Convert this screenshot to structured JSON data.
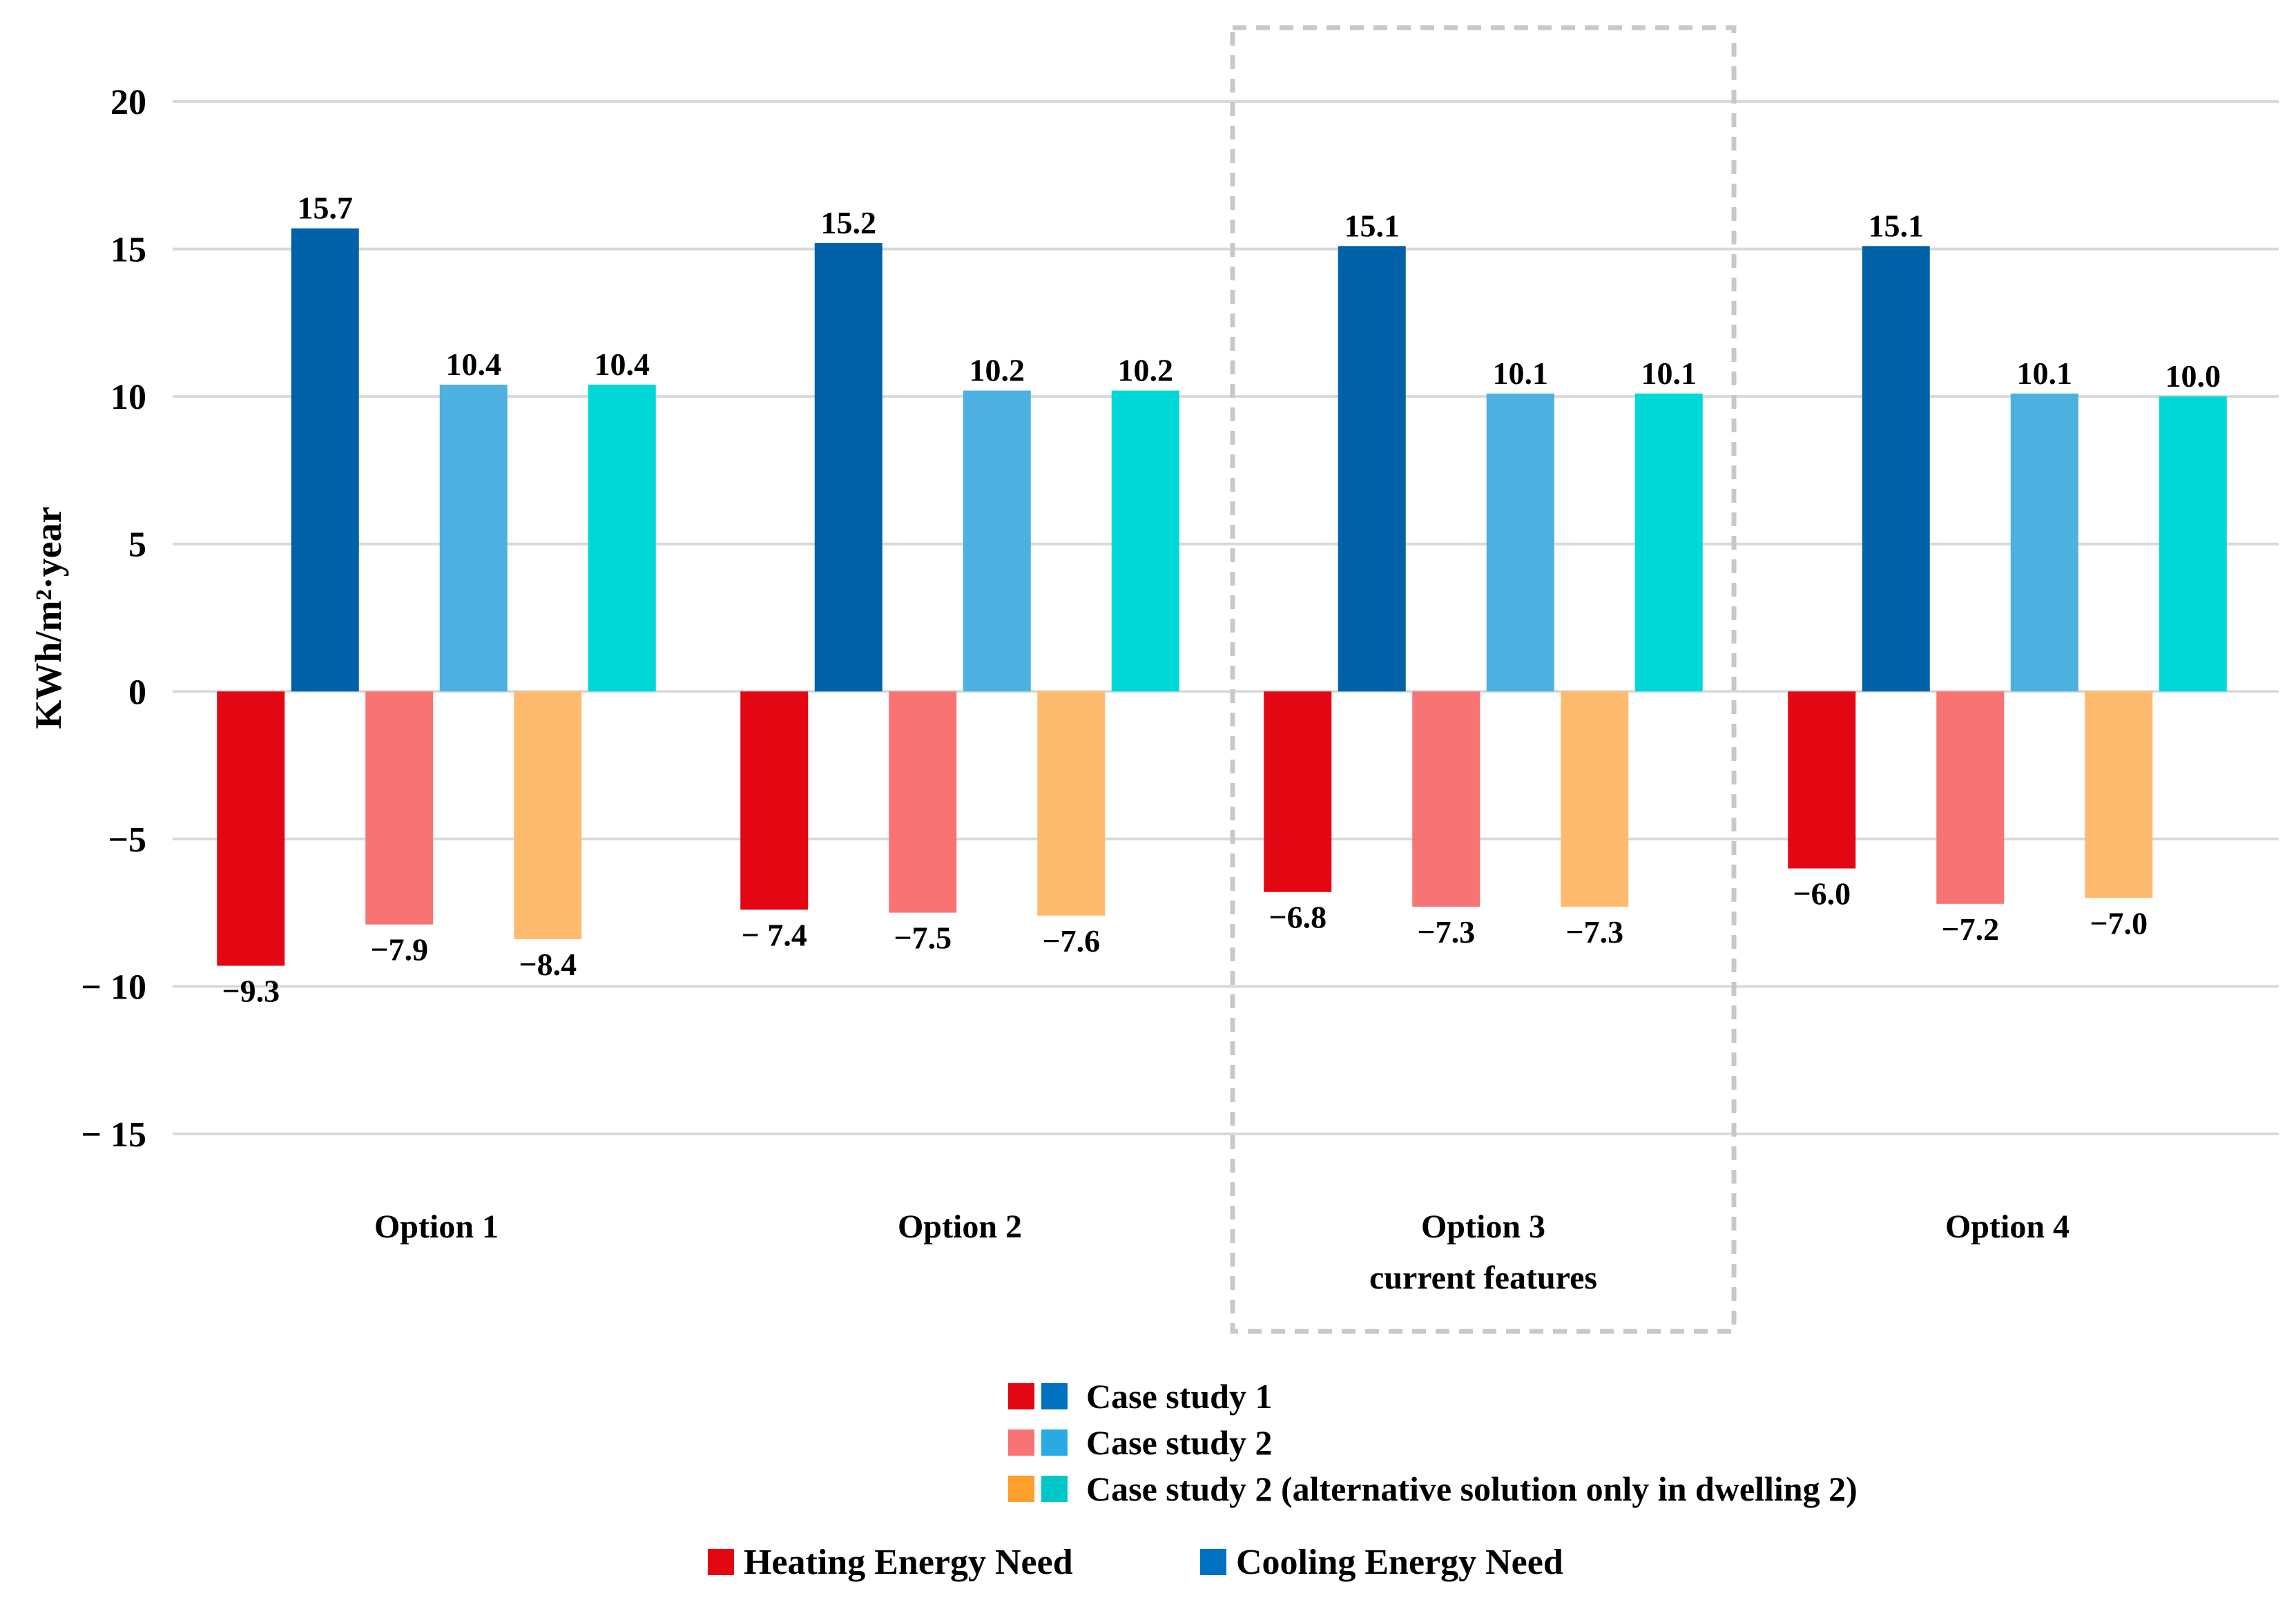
{
  "chart_data": {
    "type": "bar",
    "ylabel": "KWh/m²·year",
    "ylim": [
      -15,
      20
    ],
    "yticks": [
      20,
      15,
      10,
      5,
      0,
      -5,
      -10,
      -15
    ],
    "ytick_labels": [
      "20",
      "15",
      "10",
      "5",
      "0",
      "−5",
      "− 10",
      "− 15"
    ],
    "grid": true,
    "categories": [
      {
        "label": "Option 1",
        "sublabel": ""
      },
      {
        "label": "Option 2",
        "sublabel": ""
      },
      {
        "label": "Option 3",
        "sublabel": "current features",
        "highlighted": true
      },
      {
        "label": "Option 4",
        "sublabel": ""
      }
    ],
    "bar_order": [
      "cs1_heating",
      "cs1_cooling",
      "cs2_heating",
      "cs2_cooling",
      "cs2alt_heating",
      "cs2alt_cooling"
    ],
    "series": [
      {
        "id": "cs1_heating",
        "name": "Case study 1 – Heating Energy Need",
        "color": "#e30613",
        "values": [
          -9.3,
          -7.4,
          -6.8,
          -6.0
        ],
        "labels": [
          "−9.3",
          "− 7.4",
          "−6.8",
          "−6.0"
        ]
      },
      {
        "id": "cs1_cooling",
        "name": "Case study 1 – Cooling Energy Need",
        "color": "#0061a8",
        "values": [
          15.7,
          15.2,
          15.1,
          15.1
        ],
        "labels": [
          "15.7",
          "15.2",
          "15.1",
          "15.1"
        ]
      },
      {
        "id": "cs2_heating",
        "name": "Case study 2 – Heating Energy Need",
        "color": "#f87474",
        "values": [
          -7.9,
          -7.5,
          -7.3,
          -7.2
        ],
        "labels": [
          "−7.9",
          "−7.5",
          "−7.3",
          "−7.2"
        ]
      },
      {
        "id": "cs2_cooling",
        "name": "Case study 2 – Cooling Energy Need",
        "color": "#4cb1e0",
        "values": [
          10.4,
          10.2,
          10.1,
          10.1
        ],
        "labels": [
          "10.4",
          "10.2",
          "10.1",
          "10.1"
        ]
      },
      {
        "id": "cs2alt_heating",
        "name": "Case study 2 (alternative solution only in dwelling 2) – Heating Energy Need",
        "color": "#febb6e",
        "values": [
          -8.4,
          -7.6,
          -7.3,
          -7.0
        ],
        "labels": [
          "−8.4",
          "−7.6",
          "−7.3",
          "−7.0"
        ]
      },
      {
        "id": "cs2alt_cooling",
        "name": "Case study 2 (alternative solution only in dwelling 2) – Cooling Energy Need",
        "color": "#00d8d8",
        "values": [
          10.4,
          10.2,
          10.1,
          10.0
        ],
        "labels": [
          "10.4",
          "10.2",
          "10.1",
          "10.0"
        ]
      }
    ],
    "legend": {
      "placement": "bottom-center",
      "case_entries": [
        {
          "label": "Case study 1",
          "heat_color": "#e30613",
          "cool_color": "#0070c0"
        },
        {
          "label": "Case study 2",
          "heat_color": "#f87474",
          "cool_color": "#29aae2"
        },
        {
          "label": "Case study 2 (alternative solution only in dwelling 2)",
          "heat_color": "#ff9f2e",
          "cool_color": "#00c8c8"
        }
      ],
      "type_entries": [
        {
          "label": "Heating Energy Need",
          "color": "#e30613"
        },
        {
          "label": "Cooling Energy Need",
          "color": "#0070c0"
        }
      ]
    }
  }
}
